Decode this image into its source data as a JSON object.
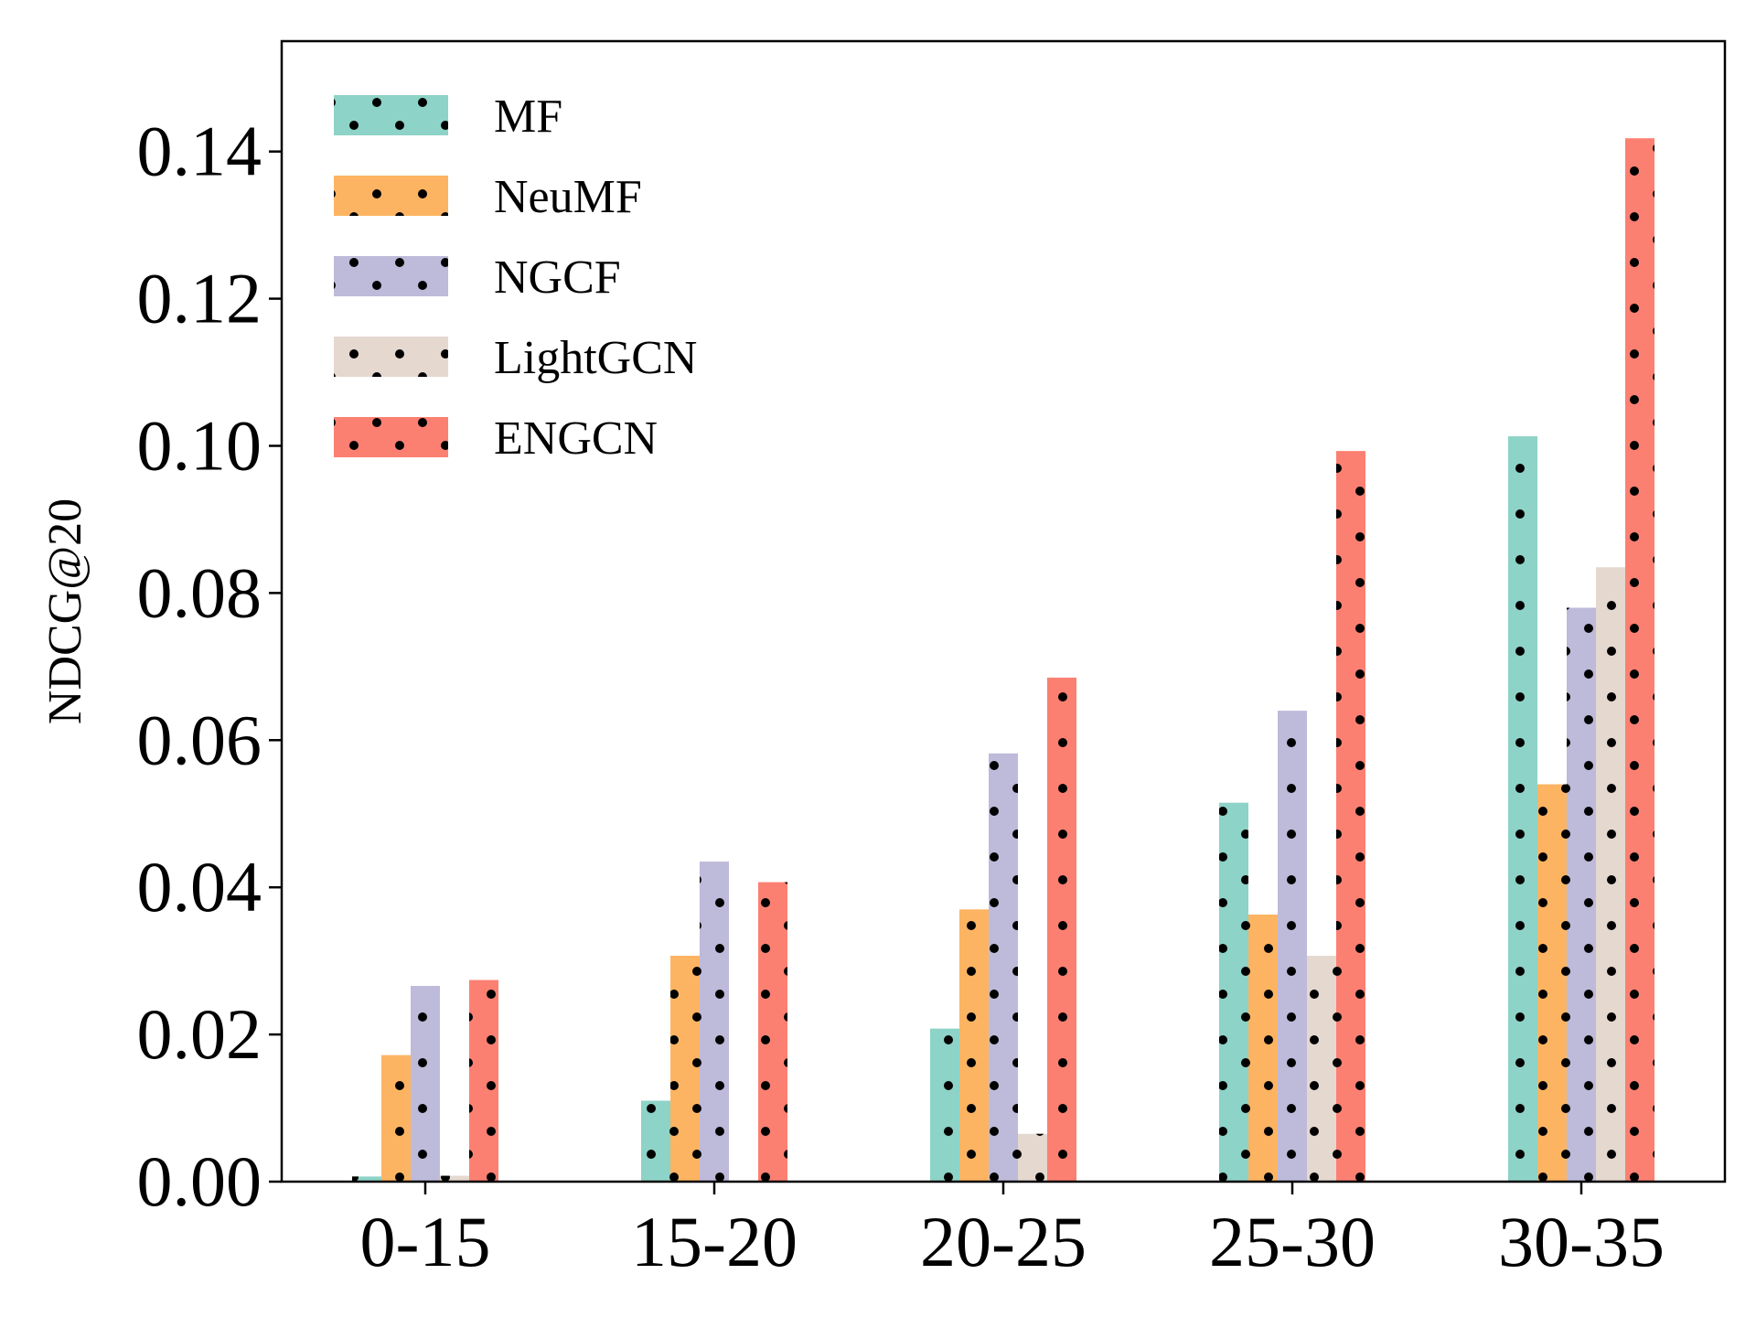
{
  "chart_data": {
    "type": "bar",
    "ylabel": "NDCG@20",
    "xlabel": "",
    "categories": [
      "0-15",
      "15-20",
      "20-25",
      "25-30",
      "30-35"
    ],
    "ylim": [
      0,
      0.155
    ],
    "yticks": [
      "0.00",
      "0.02",
      "0.04",
      "0.06",
      "0.08",
      "0.10",
      "0.12",
      "0.14"
    ],
    "legend_position": "upper-left",
    "pattern": "dots",
    "series": [
      {
        "name": "MF",
        "color": "#8dd3c7",
        "values": [
          0.0007,
          0.011,
          0.0208,
          0.0515,
          0.1013
        ]
      },
      {
        "name": "NeuMF",
        "color": "#fdb462",
        "values": [
          0.0172,
          0.0307,
          0.037,
          0.0363,
          0.054
        ]
      },
      {
        "name": "NGCF",
        "color": "#bebada",
        "values": [
          0.0266,
          0.0435,
          0.0582,
          0.064,
          0.078
        ]
      },
      {
        "name": "LightGCN",
        "color": "#e5d8cf",
        "values": [
          0.0008,
          0.0,
          0.0065,
          0.0307,
          0.0835
        ]
      },
      {
        "name": "ENGCN",
        "color": "#fb8072",
        "values": [
          0.0274,
          0.0407,
          0.0685,
          0.0993,
          0.1418
        ]
      }
    ]
  }
}
